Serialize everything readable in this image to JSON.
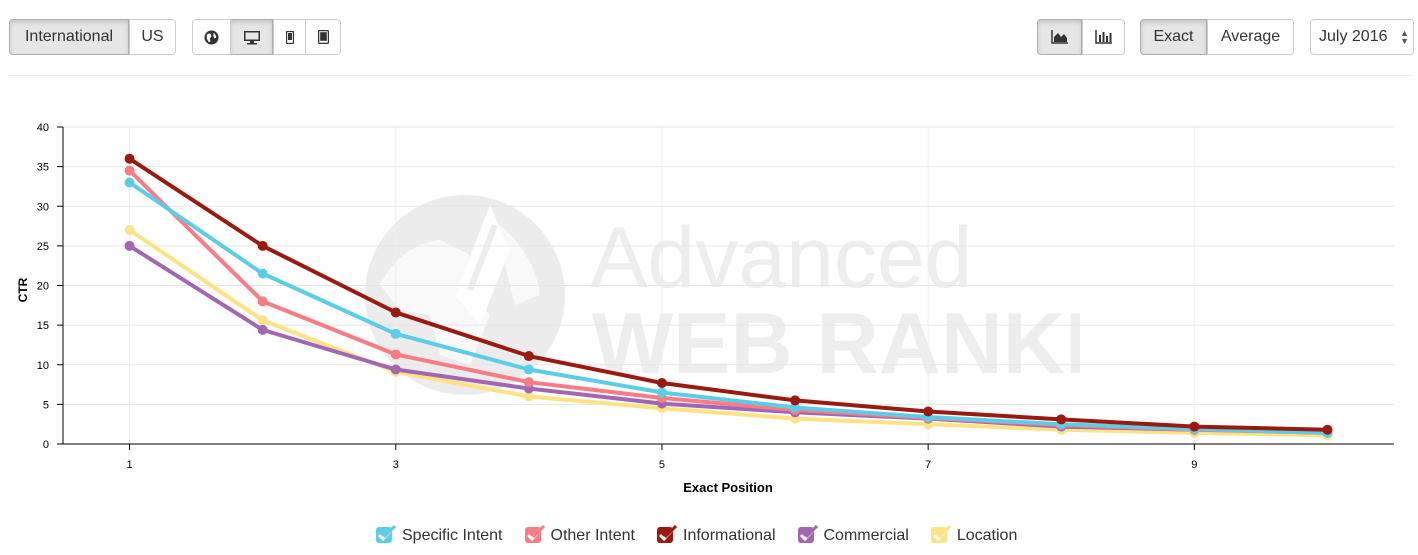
{
  "toolbar": {
    "region": [
      "International",
      "US"
    ],
    "region_active": 0,
    "devices": [
      "globe-icon",
      "desktop-icon",
      "mobile-icon",
      "tablet-icon"
    ],
    "device_active": 1,
    "chart_types": [
      "area-chart-icon",
      "bar-chart-icon"
    ],
    "chart_type_active": 0,
    "mode": [
      "Exact",
      "Average"
    ],
    "mode_active": 0,
    "month": "July 2016"
  },
  "watermark": {
    "line1": "Advanced",
    "line2": "WEB RANKING"
  },
  "chart_data": {
    "type": "line",
    "xlabel": "Exact Position",
    "ylabel": "CTR",
    "x": [
      1,
      2,
      3,
      4,
      5,
      6,
      7,
      8,
      9,
      10
    ],
    "xticks": [
      1,
      3,
      5,
      7,
      9
    ],
    "yticks": [
      0,
      5,
      10,
      15,
      20,
      25,
      30,
      35,
      40
    ],
    "ylim": [
      0,
      40
    ],
    "xlim": [
      0.5,
      10.5
    ],
    "grid": true,
    "legend_position": "bottom",
    "series": [
      {
        "name": "Specific Intent",
        "color": "#5bcde8",
        "values": [
          33.0,
          21.5,
          13.9,
          9.4,
          6.5,
          4.6,
          3.4,
          2.5,
          1.9,
          1.4
        ]
      },
      {
        "name": "Other Intent",
        "color": "#f97c85",
        "values": [
          34.5,
          18.0,
          11.3,
          7.8,
          5.8,
          4.3,
          3.3,
          2.4,
          1.8,
          1.4
        ]
      },
      {
        "name": "Informational",
        "color": "#9b1a10",
        "values": [
          36.0,
          25.0,
          16.6,
          11.1,
          7.7,
          5.5,
          4.1,
          3.1,
          2.2,
          1.8
        ]
      },
      {
        "name": "Commercial",
        "color": "#a366b3",
        "values": [
          25.0,
          14.4,
          9.4,
          7.0,
          5.1,
          4.0,
          3.2,
          2.2,
          1.8,
          1.6
        ]
      },
      {
        "name": "Location",
        "color": "#fde383",
        "values": [
          27.0,
          15.6,
          9.1,
          6.0,
          4.5,
          3.2,
          2.5,
          1.8,
          1.4,
          1.1
        ]
      }
    ]
  }
}
